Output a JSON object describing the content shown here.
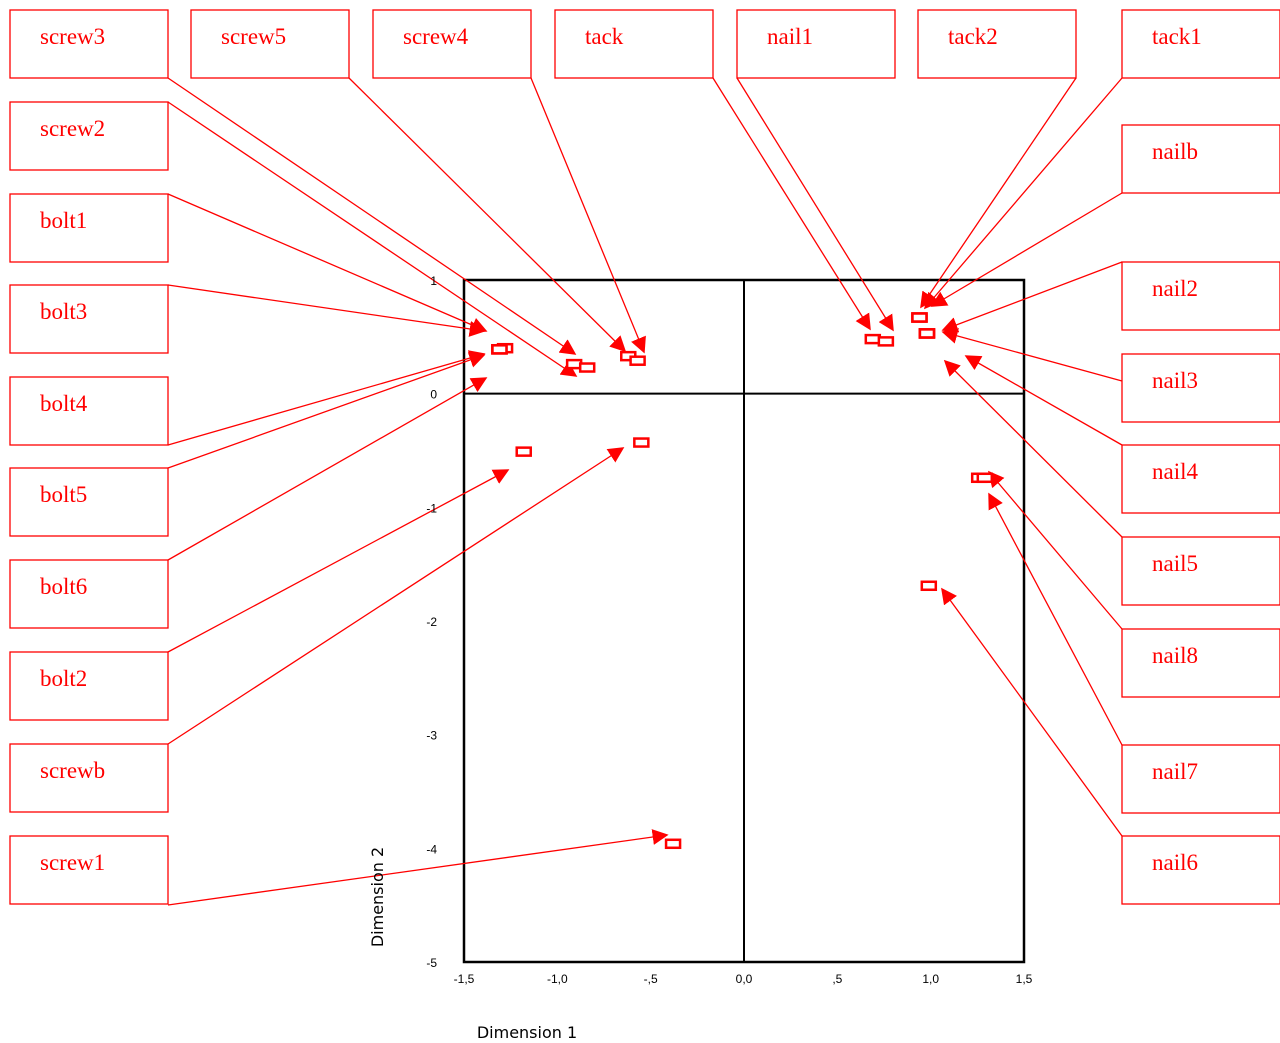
{
  "chart_data": {
    "type": "scatter",
    "xlabel": "Dimension 1",
    "ylabel": "Dimension 2",
    "xlim": [
      -1.5,
      1.5
    ],
    "ylim": [
      -5,
      1
    ],
    "x_ticks": [
      "-1,5",
      "-1,0",
      "-,5",
      "0,0",
      ",5",
      "1,0",
      "1,5"
    ],
    "y_ticks": [
      "1",
      "0",
      "-1",
      "-2",
      "-3",
      "-4",
      "-5"
    ],
    "x_tick_values": [
      -1.5,
      -1.0,
      -0.5,
      0.0,
      0.5,
      1.0,
      1.5
    ],
    "y_tick_values": [
      1,
      0,
      -1,
      -2,
      -3,
      -4,
      -5
    ],
    "marker_color": "#ff0000",
    "label_color": "#ff0000",
    "points": [
      {
        "label": "screw3",
        "x": -0.91,
        "y": 0.26
      },
      {
        "label": "screw5",
        "x": -0.62,
        "y": 0.33
      },
      {
        "label": "screw4",
        "x": -0.57,
        "y": 0.29
      },
      {
        "label": "tack",
        "x": 0.69,
        "y": 0.48
      },
      {
        "label": "nail1",
        "x": 0.76,
        "y": 0.46
      },
      {
        "label": "tack2",
        "x": 0.94,
        "y": 0.67
      },
      {
        "label": "tack1",
        "x": 0.94,
        "y": 0.67
      },
      {
        "label": "screw2",
        "x": -0.84,
        "y": 0.23
      },
      {
        "label": "nailb",
        "x": 0.94,
        "y": 0.67
      },
      {
        "label": "bolt1",
        "x": -1.31,
        "y": 0.39
      },
      {
        "label": "nail2",
        "x": 0.98,
        "y": 0.53
      },
      {
        "label": "bolt3",
        "x": -1.31,
        "y": 0.39
      },
      {
        "label": "nail3",
        "x": 0.98,
        "y": 0.53
      },
      {
        "label": "bolt4",
        "x": -1.28,
        "y": 0.4
      },
      {
        "label": "nail4",
        "x": 0.98,
        "y": 0.53
      },
      {
        "label": "bolt5",
        "x": -1.31,
        "y": 0.39
      },
      {
        "label": "nail5",
        "x": 0.98,
        "y": 0.53
      },
      {
        "label": "bolt6",
        "x": -1.31,
        "y": 0.39
      },
      {
        "label": "nail8",
        "x": 1.26,
        "y": -0.74
      },
      {
        "label": "bolt2",
        "x": -1.18,
        "y": -0.51
      },
      {
        "label": "nail7",
        "x": 1.29,
        "y": -0.74
      },
      {
        "label": "screwb",
        "x": -0.55,
        "y": -0.43
      },
      {
        "label": "nail6",
        "x": 0.99,
        "y": -1.69
      },
      {
        "label": "screw1",
        "x": -0.38,
        "y": -3.96
      }
    ]
  }
}
